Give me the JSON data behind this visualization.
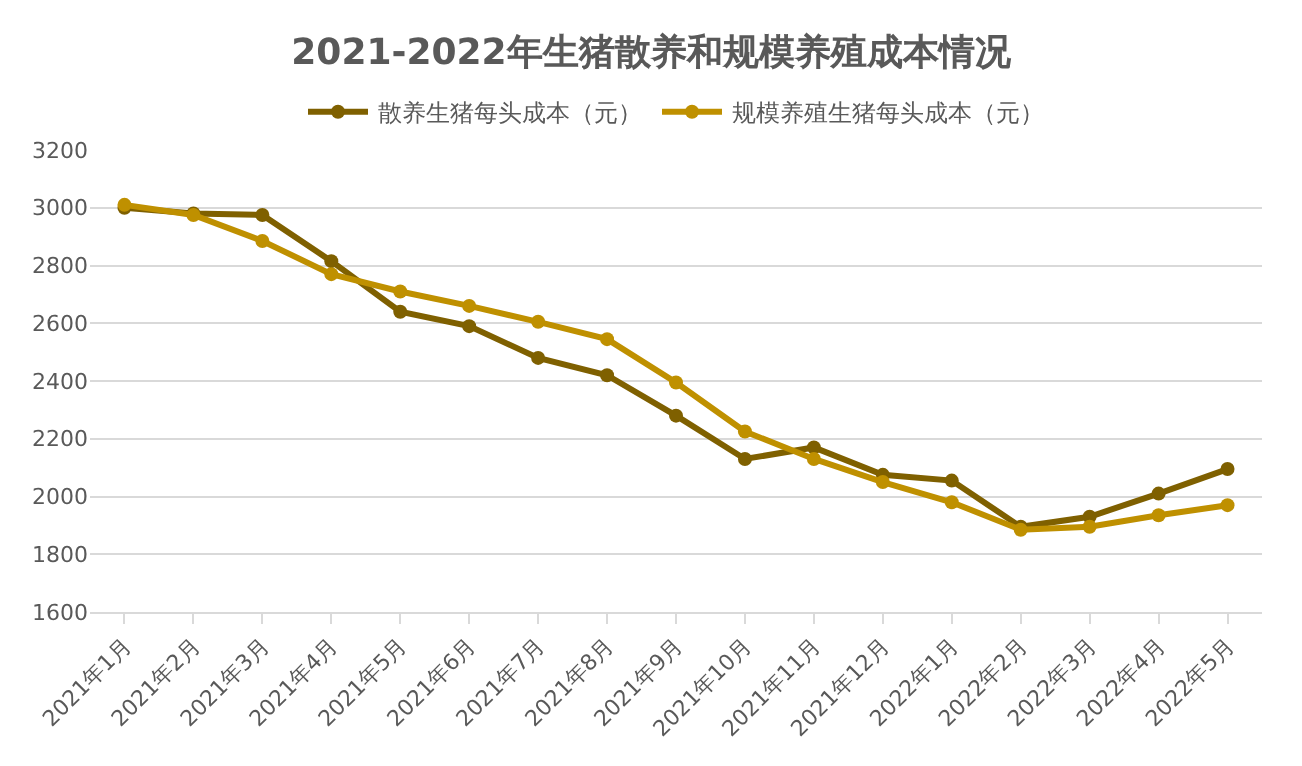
{
  "chart_data": {
    "type": "line",
    "title": "2021-2022年生猪散养和规模养殖成本情况",
    "categories": [
      "2021年1月",
      "2021年2月",
      "2021年3月",
      "2021年4月",
      "2021年5月",
      "2021年6月",
      "2021年7月",
      "2021年8月",
      "2021年9月",
      "2021年10月",
      "2021年11月",
      "2021年12月",
      "2022年1月",
      "2022年2月",
      "2022年3月",
      "2022年4月",
      "2022年5月"
    ],
    "series": [
      {
        "name": "散养生猪每头成本（元）",
        "color": "#7f6000",
        "values": [
          3000,
          2980,
          2975,
          2815,
          2640,
          2590,
          2480,
          2420,
          2280,
          2130,
          2170,
          2075,
          2055,
          1895,
          1930,
          2010,
          2095
        ]
      },
      {
        "name": "规模养殖生猪每头成本（元）",
        "color": "#bf9000",
        "values": [
          3010,
          2975,
          2885,
          2770,
          2710,
          2660,
          2605,
          2545,
          2395,
          2225,
          2130,
          2050,
          1980,
          1885,
          1895,
          1935,
          1970
        ]
      }
    ],
    "ylim": [
      1600,
      3200
    ],
    "yticks": [
      1600,
      1800,
      2000,
      2200,
      2400,
      2600,
      2800,
      3000,
      3200
    ],
    "grid": "y",
    "legend": "top",
    "marker": "circle",
    "line_style": "solid"
  }
}
